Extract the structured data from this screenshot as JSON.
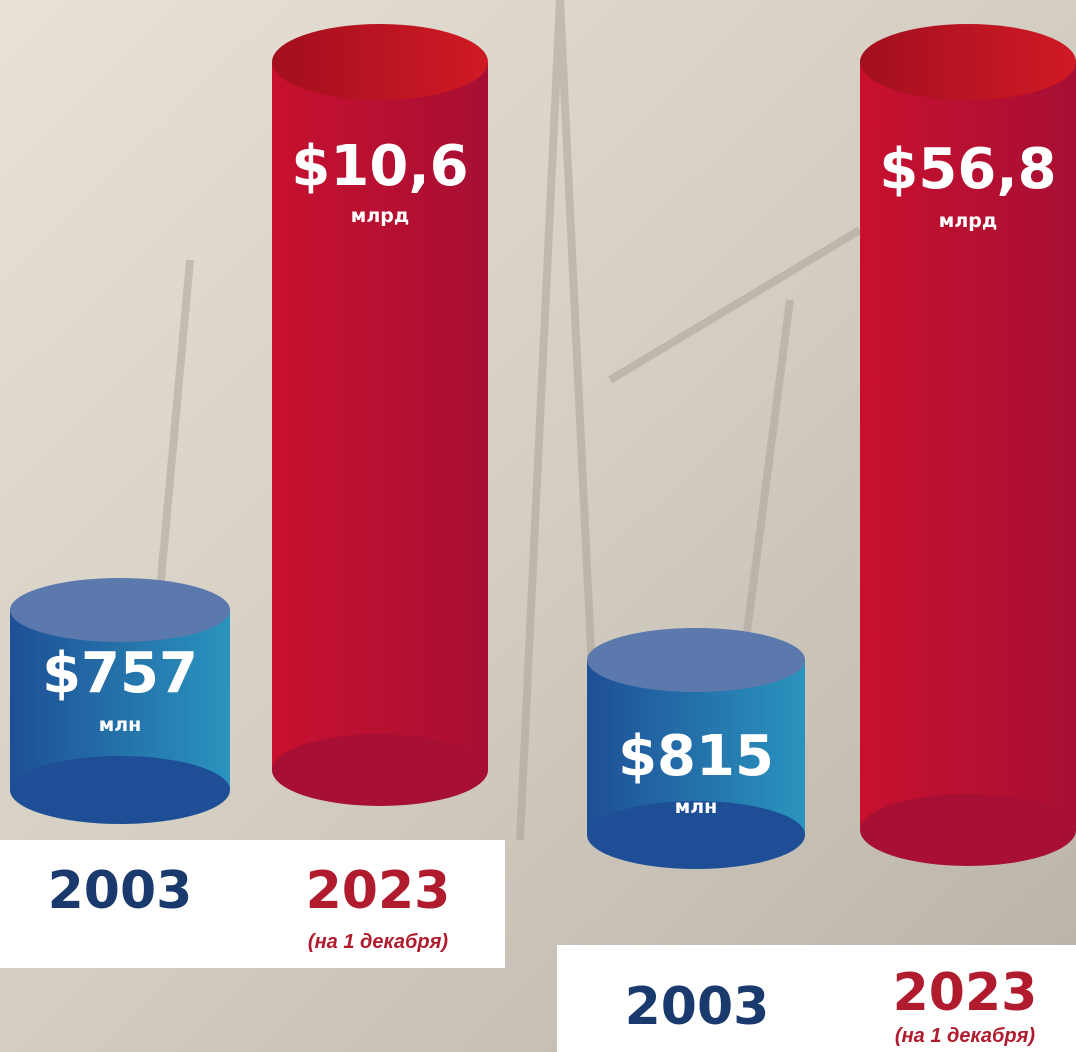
{
  "panels": [
    {
      "bars": [
        {
          "value": "$757",
          "unit": "млн",
          "year": "2003"
        },
        {
          "value": "$10,6",
          "unit": "млрд",
          "year": "2023",
          "note": "(на 1 декабря)"
        }
      ]
    },
    {
      "bars": [
        {
          "value": "$815",
          "unit": "млн",
          "year": "2003"
        },
        {
          "value": "$56,8",
          "unit": "млрд",
          "year": "2023",
          "note": "(на 1 декабря)"
        }
      ]
    }
  ]
}
